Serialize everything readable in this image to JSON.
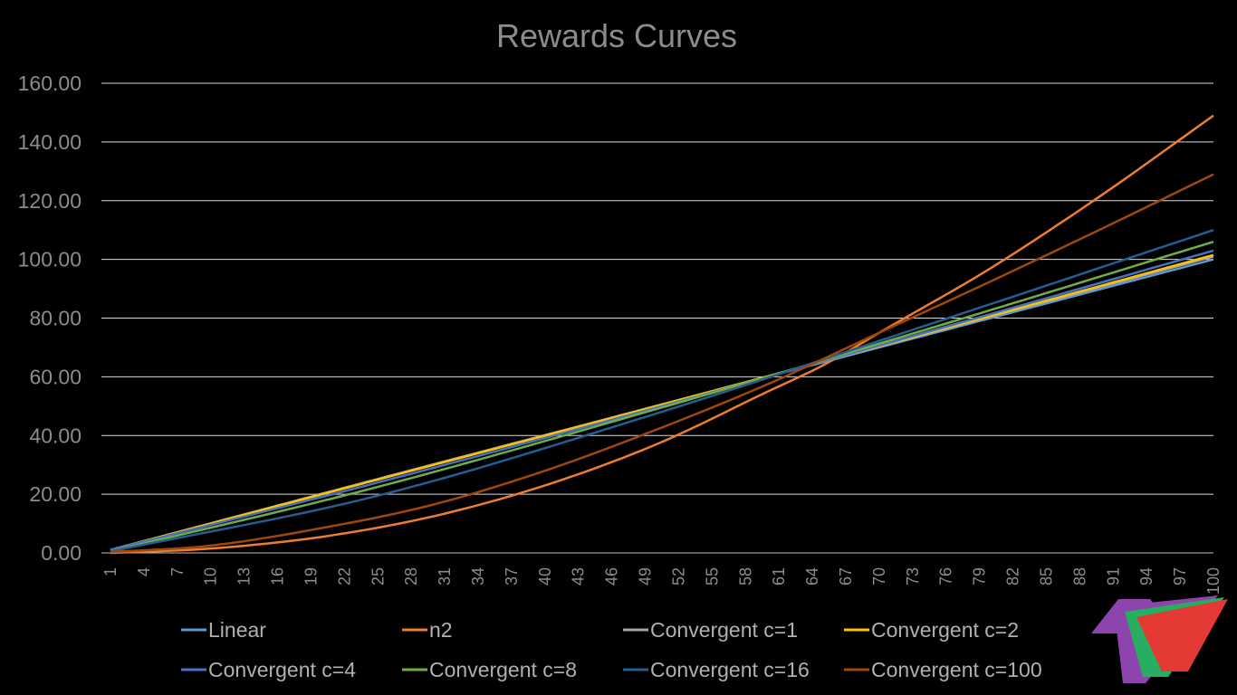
{
  "chart_data": {
    "type": "line",
    "title": "Rewards Curves",
    "xlabel": "",
    "ylabel": "",
    "x_range": [
      1,
      100
    ],
    "ylim": [
      0,
      160
    ],
    "y_ticks": [
      "0.00",
      "20.00",
      "40.00",
      "60.00",
      "80.00",
      "100.00",
      "120.00",
      "140.00",
      "160.00"
    ],
    "x_tick_labels": [
      1,
      4,
      7,
      10,
      13,
      16,
      19,
      22,
      25,
      28,
      31,
      34,
      37,
      40,
      43,
      46,
      49,
      52,
      55,
      58,
      61,
      64,
      67,
      70,
      73,
      76,
      79,
      82,
      85,
      88,
      91,
      94,
      97,
      100
    ],
    "grid": "horizontal",
    "legend_position": "bottom",
    "series": [
      {
        "name": "Linear",
        "color": "#5b9bd5",
        "points": [
          [
            1,
            1
          ],
          [
            25,
            25
          ],
          [
            50,
            50
          ],
          [
            75,
            75
          ],
          [
            100,
            100
          ]
        ]
      },
      {
        "name": "n2",
        "color": "#ed7d31",
        "points": [
          [
            1,
            0
          ],
          [
            10,
            1.5
          ],
          [
            20,
            5.5
          ],
          [
            30,
            12.5
          ],
          [
            40,
            23
          ],
          [
            50,
            37
          ],
          [
            60,
            55
          ],
          [
            65,
            64
          ],
          [
            70,
            75
          ],
          [
            80,
            97
          ],
          [
            90,
            122
          ],
          [
            100,
            149
          ]
        ]
      },
      {
        "name": "Convergent c=1",
        "color": "#a5a5a5",
        "points": [
          [
            1,
            1
          ],
          [
            25,
            25.2
          ],
          [
            50,
            50.1
          ],
          [
            75,
            75.4
          ],
          [
            100,
            101
          ]
        ]
      },
      {
        "name": "Convergent c=2",
        "color": "#ffc000",
        "points": [
          [
            1,
            1
          ],
          [
            25,
            25
          ],
          [
            50,
            50
          ],
          [
            75,
            75.6
          ],
          [
            100,
            101.5
          ]
        ]
      },
      {
        "name": "Convergent c=4",
        "color": "#4472c4",
        "points": [
          [
            1,
            1
          ],
          [
            25,
            24
          ],
          [
            50,
            49.5
          ],
          [
            75,
            76
          ],
          [
            100,
            103
          ]
        ]
      },
      {
        "name": "Convergent c=8",
        "color": "#70ad47",
        "points": [
          [
            1,
            0.5
          ],
          [
            25,
            22.5
          ],
          [
            50,
            49
          ],
          [
            75,
            77
          ],
          [
            100,
            106
          ]
        ]
      },
      {
        "name": "Convergent c=16",
        "color": "#255e91",
        "points": [
          [
            1,
            0.5
          ],
          [
            25,
            19.5
          ],
          [
            50,
            47.5
          ],
          [
            75,
            78.5
          ],
          [
            100,
            110
          ]
        ]
      },
      {
        "name": "Convergent c=100",
        "color": "#9e480e",
        "points": [
          [
            1,
            0.3
          ],
          [
            10,
            2.5
          ],
          [
            20,
            8.5
          ],
          [
            30,
            16.5
          ],
          [
            40,
            28
          ],
          [
            50,
            42
          ],
          [
            60,
            57.5
          ],
          [
            70,
            75
          ],
          [
            80,
            92.5
          ],
          [
            90,
            110.5
          ],
          [
            100,
            129
          ]
        ]
      }
    ]
  }
}
